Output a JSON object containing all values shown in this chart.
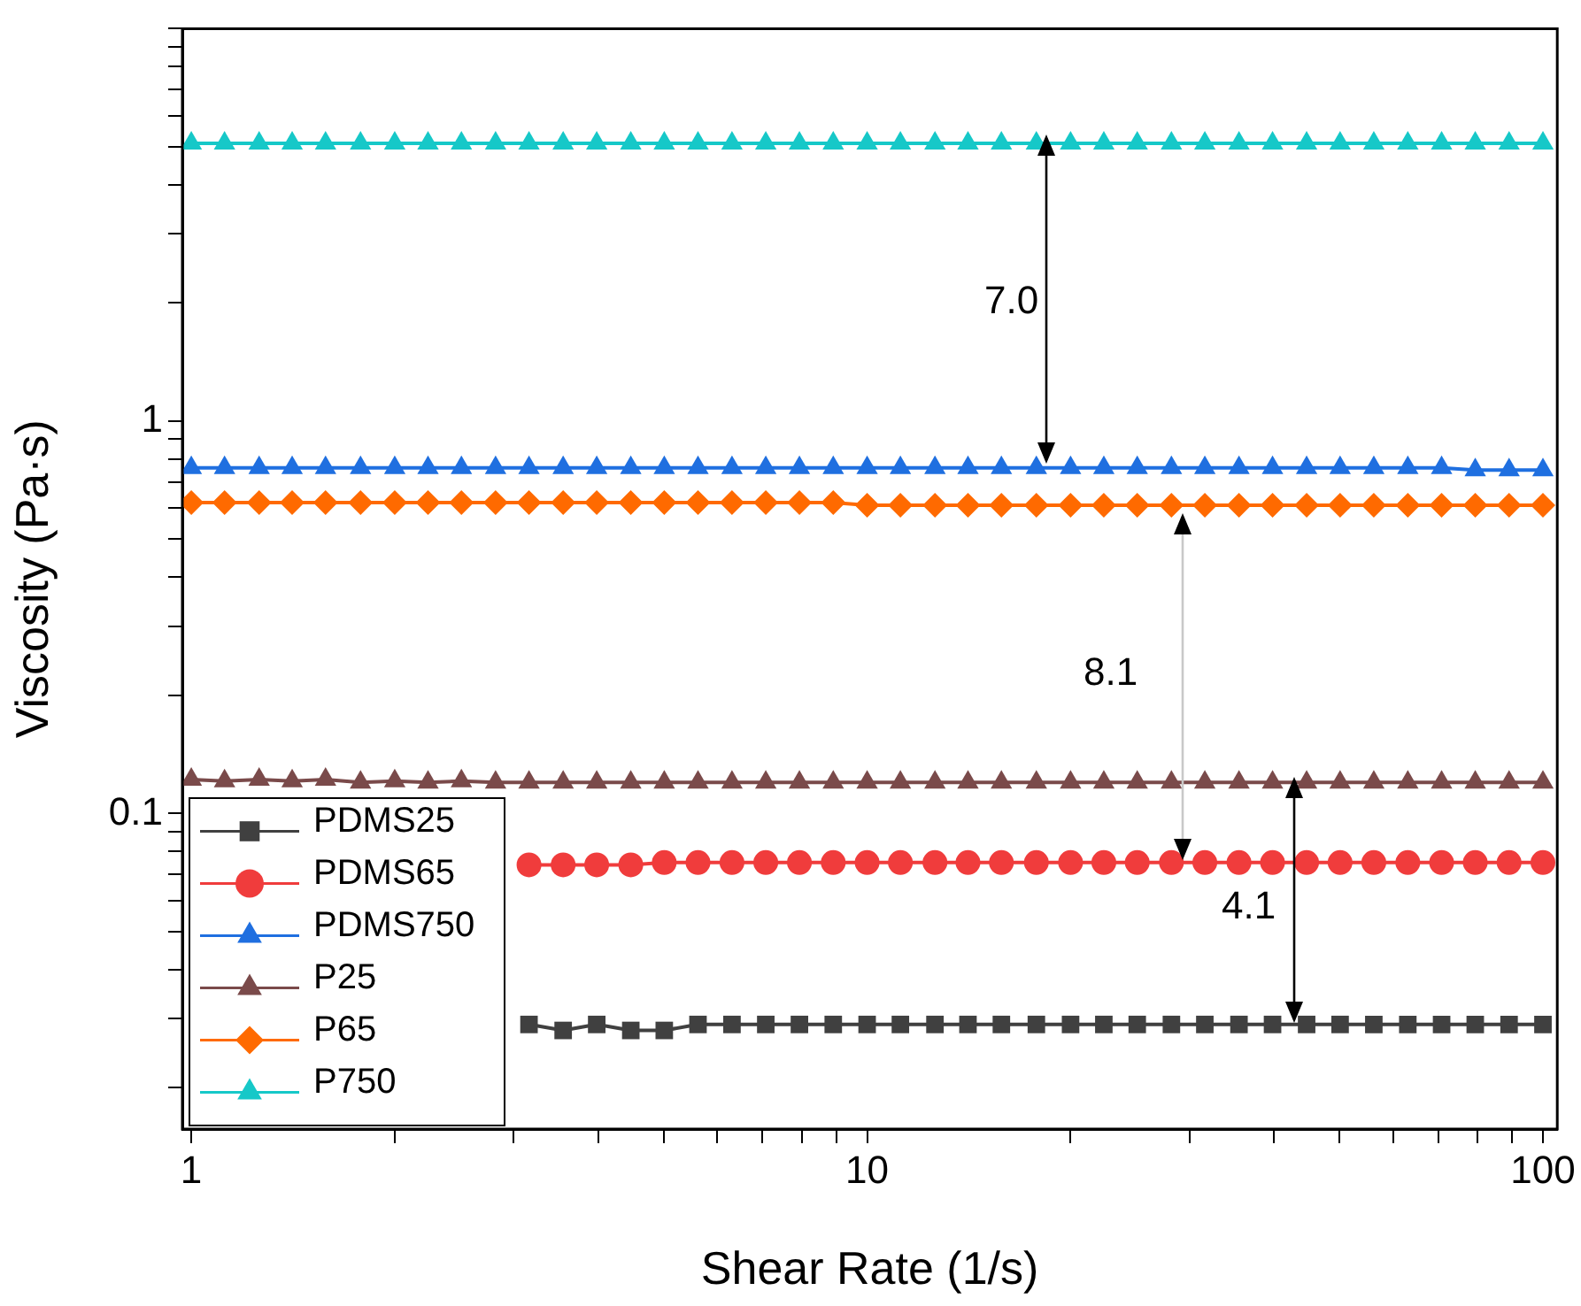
{
  "chart_data": {
    "type": "line",
    "xlabel": "Shear Rate (1/s)",
    "ylabel": "Viscosity (Pa·s)",
    "log": "xy",
    "xlim": [
      0.97,
      105
    ],
    "ylim": [
      0.0157,
      10
    ],
    "xticks": [
      1,
      {
        "value": 2,
        "label": null
      },
      {
        "value": 3,
        "label": null
      },
      {
        "value": 4,
        "label": null
      },
      {
        "value": 5,
        "label": null
      },
      {
        "value": 6,
        "label": null
      },
      {
        "value": 7,
        "label": null
      },
      {
        "value": 8,
        "label": null
      },
      {
        "value": 9,
        "label": null
      },
      10,
      {
        "value": 20,
        "label": null
      },
      {
        "value": 30,
        "label": null
      },
      {
        "value": 40,
        "label": null
      },
      {
        "value": 50,
        "label": null
      },
      {
        "value": 60,
        "label": null
      },
      {
        "value": 70,
        "label": null
      },
      {
        "value": 80,
        "label": null
      },
      {
        "value": 90,
        "label": null
      },
      100
    ],
    "yticks": [
      {
        "value": 0.02,
        "label": null
      },
      {
        "value": 0.03,
        "label": null
      },
      {
        "value": 0.04,
        "label": null
      },
      {
        "value": 0.05,
        "label": null
      },
      {
        "value": 0.06,
        "label": null
      },
      {
        "value": 0.07,
        "label": null
      },
      {
        "value": 0.08,
        "label": null
      },
      {
        "value": 0.09,
        "label": null
      },
      0.1,
      {
        "value": 0.2,
        "label": null
      },
      {
        "value": 0.3,
        "label": null
      },
      {
        "value": 0.4,
        "label": null
      },
      {
        "value": 0.5,
        "label": null
      },
      {
        "value": 0.6,
        "label": null
      },
      {
        "value": 0.7,
        "label": null
      },
      {
        "value": 0.8,
        "label": null
      },
      {
        "value": 0.9,
        "label": null
      },
      1,
      {
        "value": 2,
        "label": null
      },
      {
        "value": 3,
        "label": null
      },
      {
        "value": 4,
        "label": null
      },
      {
        "value": 5,
        "label": null
      },
      {
        "value": 6,
        "label": null
      },
      {
        "value": 7,
        "label": null
      },
      {
        "value": 8,
        "label": null
      },
      {
        "value": 9,
        "label": null
      },
      {
        "value": 10,
        "label": null
      }
    ],
    "grid": false,
    "legend": "bottom left",
    "line_style": "solid",
    "x": [
      1,
      1.12,
      1.26,
      1.41,
      1.58,
      1.78,
      2,
      2.24,
      2.51,
      2.82,
      3.16,
      3.55,
      3.98,
      4.47,
      5.01,
      5.62,
      6.31,
      7.08,
      7.94,
      8.91,
      10,
      11.2,
      12.6,
      14.1,
      15.8,
      17.8,
      20,
      22.4,
      25.1,
      28.2,
      31.6,
      35.5,
      39.8,
      44.7,
      50.1,
      56.2,
      63.1,
      70.8,
      79.4,
      89.1,
      100
    ],
    "series": [
      {
        "name": "PDMS25",
        "color": "#404040",
        "marker": "square",
        "values": [
          null,
          null,
          null,
          null,
          null,
          null,
          null,
          null,
          null,
          null,
          0.029,
          0.028,
          0.029,
          0.028,
          0.028,
          0.029,
          0.029,
          0.029,
          0.029,
          0.029,
          0.029,
          0.029,
          0.029,
          0.029,
          0.029,
          0.029,
          0.029,
          0.029,
          0.029,
          0.029,
          0.029,
          0.029,
          0.029,
          0.029,
          0.029,
          0.029,
          0.029,
          0.029,
          0.029,
          0.029,
          0.029
        ]
      },
      {
        "name": "PDMS65",
        "color": "#f03c3c",
        "marker": "circle",
        "values": [
          null,
          null,
          null,
          null,
          null,
          null,
          null,
          null,
          null,
          null,
          0.074,
          0.074,
          0.074,
          0.074,
          0.075,
          0.075,
          0.075,
          0.075,
          0.075,
          0.075,
          0.075,
          0.075,
          0.075,
          0.075,
          0.075,
          0.075,
          0.075,
          0.075,
          0.075,
          0.075,
          0.075,
          0.075,
          0.075,
          0.075,
          0.075,
          0.075,
          0.075,
          0.075,
          0.075,
          0.075,
          0.075
        ]
      },
      {
        "name": "PDMS750",
        "color": "#1f6fe0",
        "marker": "triangle",
        "values": [
          0.76,
          0.76,
          0.76,
          0.76,
          0.76,
          0.76,
          0.76,
          0.76,
          0.76,
          0.76,
          0.76,
          0.76,
          0.76,
          0.76,
          0.76,
          0.76,
          0.76,
          0.76,
          0.76,
          0.76,
          0.76,
          0.76,
          0.76,
          0.76,
          0.76,
          0.76,
          0.76,
          0.76,
          0.76,
          0.76,
          0.76,
          0.76,
          0.76,
          0.76,
          0.76,
          0.76,
          0.76,
          0.76,
          0.75,
          0.75,
          0.75
        ]
      },
      {
        "name": "P25",
        "color": "#7a4a4a",
        "marker": "triangle",
        "values": [
          0.122,
          0.121,
          0.122,
          0.121,
          0.122,
          0.12,
          0.121,
          0.12,
          0.121,
          0.12,
          0.12,
          0.12,
          0.12,
          0.12,
          0.12,
          0.12,
          0.12,
          0.12,
          0.12,
          0.12,
          0.12,
          0.12,
          0.12,
          0.12,
          0.12,
          0.12,
          0.12,
          0.12,
          0.12,
          0.12,
          0.12,
          0.12,
          0.12,
          0.12,
          0.12,
          0.12,
          0.12,
          0.12,
          0.12,
          0.12,
          0.12
        ]
      },
      {
        "name": "P65",
        "color": "#ff6a00",
        "marker": "diamond",
        "values": [
          0.62,
          0.62,
          0.62,
          0.62,
          0.62,
          0.62,
          0.62,
          0.62,
          0.62,
          0.62,
          0.62,
          0.62,
          0.62,
          0.62,
          0.62,
          0.62,
          0.62,
          0.62,
          0.62,
          0.62,
          0.61,
          0.61,
          0.61,
          0.61,
          0.61,
          0.61,
          0.61,
          0.61,
          0.61,
          0.61,
          0.61,
          0.61,
          0.61,
          0.61,
          0.61,
          0.61,
          0.61,
          0.61,
          0.61,
          0.61,
          0.61
        ]
      },
      {
        "name": "P750",
        "color": "#16c8c8",
        "marker": "triangle",
        "values": [
          5.1,
          5.1,
          5.1,
          5.1,
          5.1,
          5.1,
          5.1,
          5.1,
          5.1,
          5.1,
          5.1,
          5.1,
          5.1,
          5.1,
          5.1,
          5.1,
          5.1,
          5.1,
          5.1,
          5.1,
          5.1,
          5.1,
          5.1,
          5.1,
          5.1,
          5.1,
          5.1,
          5.1,
          5.1,
          5.1,
          5.1,
          5.1,
          5.1,
          5.1,
          5.1,
          5.1,
          5.1,
          5.1,
          5.1,
          5.1,
          5.1
        ]
      }
    ],
    "annotations": [
      "7.0",
      "8.1",
      "4.1"
    ]
  }
}
